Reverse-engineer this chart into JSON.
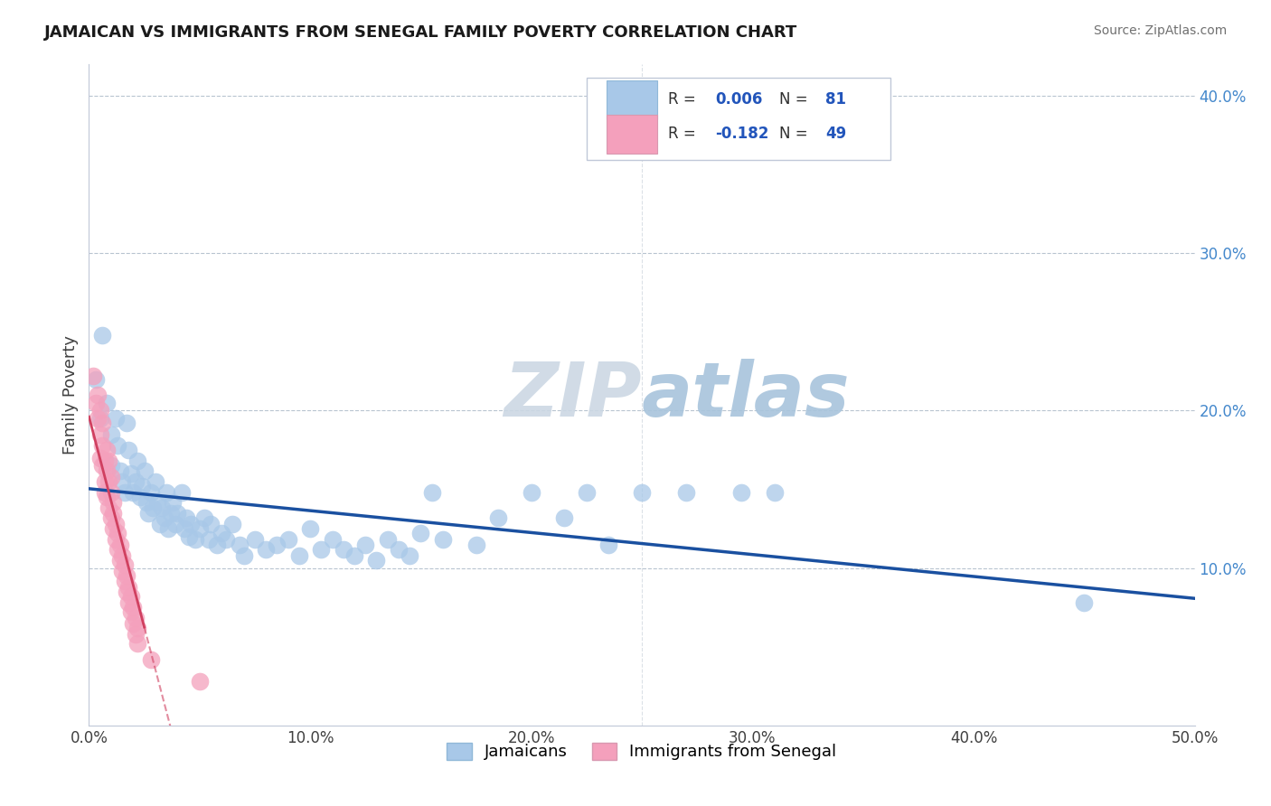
{
  "title": "JAMAICAN VS IMMIGRANTS FROM SENEGAL FAMILY POVERTY CORRELATION CHART",
  "source": "Source: ZipAtlas.com",
  "ylabel": "Family Poverty",
  "xlim": [
    0.0,
    0.5
  ],
  "ylim": [
    0.0,
    0.42
  ],
  "yticks": [
    0.1,
    0.2,
    0.3,
    0.4
  ],
  "ytick_labels": [
    "10.0%",
    "20.0%",
    "30.0%",
    "40.0%"
  ],
  "xticks": [
    0.0,
    0.05,
    0.1,
    0.15,
    0.2,
    0.25,
    0.3,
    0.35,
    0.4,
    0.45,
    0.5
  ],
  "xtick_labels": [
    "0.0%",
    "",
    "10.0%",
    "",
    "20.0%",
    "",
    "30.0%",
    "",
    "40.0%",
    "",
    "50.0%"
  ],
  "jamaican_color": "#a8c8e8",
  "senegal_color": "#f4a0bc",
  "jamaican_trend_color": "#1a50a0",
  "senegal_trend_color": "#d04060",
  "watermark_color": "#c8d8e8",
  "jamaican_points": [
    [
      0.003,
      0.22
    ],
    [
      0.005,
      0.195
    ],
    [
      0.006,
      0.248
    ],
    [
      0.008,
      0.205
    ],
    [
      0.01,
      0.185
    ],
    [
      0.01,
      0.165
    ],
    [
      0.012,
      0.195
    ],
    [
      0.013,
      0.178
    ],
    [
      0.014,
      0.162
    ],
    [
      0.015,
      0.155
    ],
    [
      0.016,
      0.148
    ],
    [
      0.017,
      0.192
    ],
    [
      0.018,
      0.175
    ],
    [
      0.019,
      0.16
    ],
    [
      0.02,
      0.148
    ],
    [
      0.021,
      0.155
    ],
    [
      0.022,
      0.168
    ],
    [
      0.023,
      0.145
    ],
    [
      0.024,
      0.152
    ],
    [
      0.025,
      0.162
    ],
    [
      0.026,
      0.142
    ],
    [
      0.027,
      0.135
    ],
    [
      0.028,
      0.148
    ],
    [
      0.029,
      0.138
    ],
    [
      0.03,
      0.155
    ],
    [
      0.031,
      0.142
    ],
    [
      0.032,
      0.128
    ],
    [
      0.033,
      0.138
    ],
    [
      0.034,
      0.132
    ],
    [
      0.035,
      0.148
    ],
    [
      0.036,
      0.125
    ],
    [
      0.037,
      0.135
    ],
    [
      0.038,
      0.142
    ],
    [
      0.039,
      0.128
    ],
    [
      0.04,
      0.135
    ],
    [
      0.042,
      0.148
    ],
    [
      0.043,
      0.125
    ],
    [
      0.044,
      0.132
    ],
    [
      0.045,
      0.12
    ],
    [
      0.046,
      0.128
    ],
    [
      0.048,
      0.118
    ],
    [
      0.05,
      0.125
    ],
    [
      0.052,
      0.132
    ],
    [
      0.054,
      0.118
    ],
    [
      0.055,
      0.128
    ],
    [
      0.058,
      0.115
    ],
    [
      0.06,
      0.122
    ],
    [
      0.062,
      0.118
    ],
    [
      0.065,
      0.128
    ],
    [
      0.068,
      0.115
    ],
    [
      0.07,
      0.108
    ],
    [
      0.075,
      0.118
    ],
    [
      0.08,
      0.112
    ],
    [
      0.085,
      0.115
    ],
    [
      0.09,
      0.118
    ],
    [
      0.095,
      0.108
    ],
    [
      0.1,
      0.125
    ],
    [
      0.105,
      0.112
    ],
    [
      0.11,
      0.118
    ],
    [
      0.115,
      0.112
    ],
    [
      0.12,
      0.108
    ],
    [
      0.125,
      0.115
    ],
    [
      0.13,
      0.105
    ],
    [
      0.135,
      0.118
    ],
    [
      0.14,
      0.112
    ],
    [
      0.145,
      0.108
    ],
    [
      0.15,
      0.122
    ],
    [
      0.155,
      0.148
    ],
    [
      0.16,
      0.118
    ],
    [
      0.175,
      0.115
    ],
    [
      0.185,
      0.132
    ],
    [
      0.2,
      0.148
    ],
    [
      0.215,
      0.132
    ],
    [
      0.225,
      0.148
    ],
    [
      0.235,
      0.115
    ],
    [
      0.25,
      0.148
    ],
    [
      0.27,
      0.148
    ],
    [
      0.295,
      0.148
    ],
    [
      0.31,
      0.148
    ],
    [
      0.45,
      0.078
    ]
  ],
  "senegal_points": [
    [
      0.002,
      0.222
    ],
    [
      0.003,
      0.205
    ],
    [
      0.004,
      0.21
    ],
    [
      0.004,
      0.195
    ],
    [
      0.005,
      0.185
    ],
    [
      0.005,
      0.2
    ],
    [
      0.005,
      0.17
    ],
    [
      0.006,
      0.178
    ],
    [
      0.006,
      0.165
    ],
    [
      0.006,
      0.192
    ],
    [
      0.007,
      0.155
    ],
    [
      0.007,
      0.168
    ],
    [
      0.007,
      0.148
    ],
    [
      0.008,
      0.162
    ],
    [
      0.008,
      0.145
    ],
    [
      0.008,
      0.175
    ],
    [
      0.009,
      0.138
    ],
    [
      0.009,
      0.155
    ],
    [
      0.009,
      0.168
    ],
    [
      0.01,
      0.148
    ],
    [
      0.01,
      0.132
    ],
    [
      0.01,
      0.158
    ],
    [
      0.011,
      0.125
    ],
    [
      0.011,
      0.142
    ],
    [
      0.011,
      0.135
    ],
    [
      0.012,
      0.118
    ],
    [
      0.012,
      0.128
    ],
    [
      0.013,
      0.112
    ],
    [
      0.013,
      0.122
    ],
    [
      0.014,
      0.105
    ],
    [
      0.014,
      0.115
    ],
    [
      0.015,
      0.098
    ],
    [
      0.015,
      0.108
    ],
    [
      0.016,
      0.092
    ],
    [
      0.016,
      0.102
    ],
    [
      0.017,
      0.085
    ],
    [
      0.017,
      0.095
    ],
    [
      0.018,
      0.078
    ],
    [
      0.018,
      0.088
    ],
    [
      0.019,
      0.072
    ],
    [
      0.019,
      0.082
    ],
    [
      0.02,
      0.065
    ],
    [
      0.02,
      0.075
    ],
    [
      0.021,
      0.058
    ],
    [
      0.021,
      0.068
    ],
    [
      0.022,
      0.052
    ],
    [
      0.022,
      0.062
    ],
    [
      0.028,
      0.042
    ],
    [
      0.05,
      0.028
    ]
  ]
}
